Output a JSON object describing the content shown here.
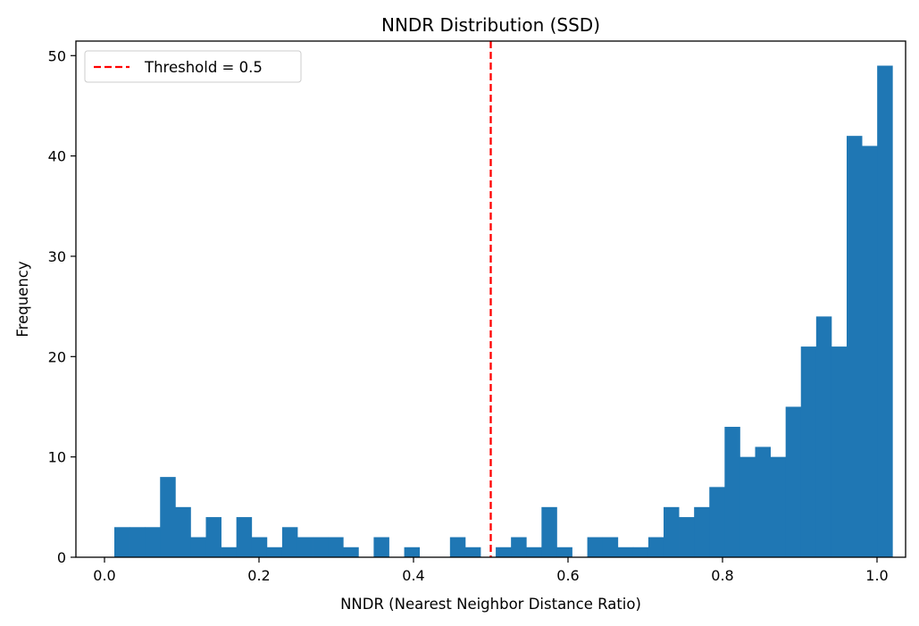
{
  "chart_data": {
    "type": "bar",
    "title": "NNDR Distribution (SSD)",
    "xlabel": "NNDR (Nearest Neighbor Distance Ratio)",
    "ylabel": "Frequency",
    "xlim": [
      -0.037,
      1.037
    ],
    "ylim": [
      0,
      51.45
    ],
    "xticks": [
      0.0,
      0.2,
      0.4,
      0.6,
      0.8,
      1.0
    ],
    "xtick_labels": [
      "0.0",
      "0.2",
      "0.4",
      "0.6",
      "0.8",
      "1.0"
    ],
    "yticks": [
      0,
      10,
      20,
      30,
      40,
      50
    ],
    "ytick_labels": [
      "0",
      "10",
      "20",
      "30",
      "40",
      "50"
    ],
    "bin_start": 0.0127,
    "bin_width": 0.01975,
    "bar_color": "#1f77b4",
    "values": [
      3,
      3,
      3,
      8,
      5,
      2,
      4,
      1,
      4,
      2,
      1,
      3,
      2,
      2,
      2,
      1,
      0,
      2,
      0,
      1,
      0,
      0,
      2,
      1,
      0,
      1,
      2,
      1,
      5,
      1,
      0,
      2,
      2,
      1,
      1,
      2,
      5,
      4,
      5,
      7,
      13,
      10,
      11,
      10,
      15,
      21,
      24,
      21,
      42,
      41,
      49
    ],
    "threshold": {
      "x": 0.5,
      "color": "#ff0000",
      "label": "Threshold = 0.5"
    },
    "legend_position": "top-left",
    "grid": false
  }
}
